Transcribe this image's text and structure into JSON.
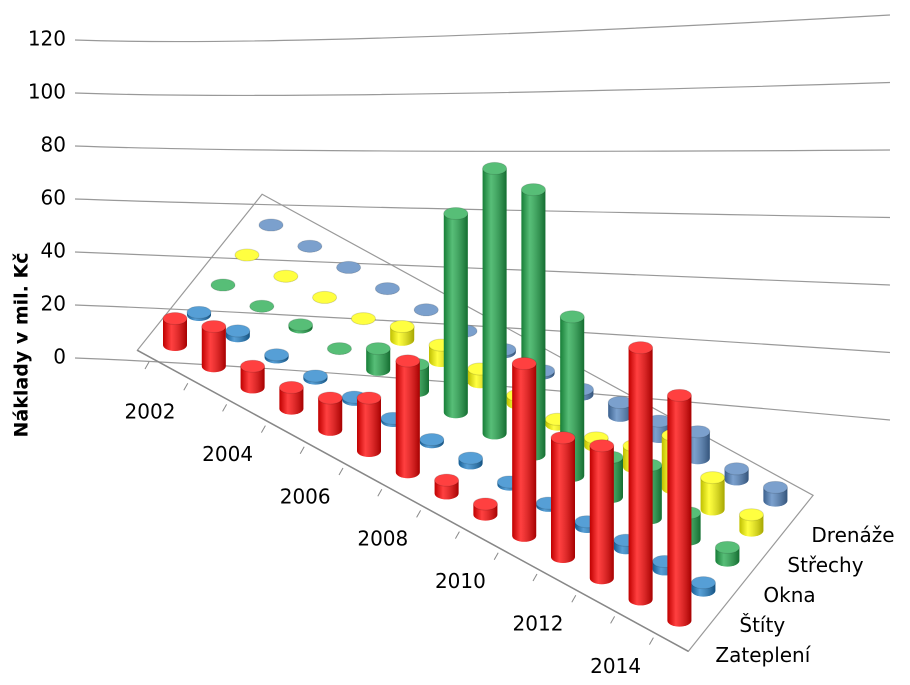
{
  "chart_data": {
    "type": "bar3d",
    "y_label": "Náklady v mil. Kč",
    "categories": [
      "2002",
      null,
      "2004",
      null,
      "2006",
      null,
      "2008",
      null,
      "2010",
      null,
      "2012",
      null,
      "2014",
      null
    ],
    "series": [
      {
        "name": "Zateplení",
        "color": "#ff0000",
        "values": [
          10,
          15,
          8,
          8,
          12,
          20,
          42,
          5,
          4,
          65,
          45,
          50,
          95,
          85
        ]
      },
      {
        "name": "Štíty",
        "color": "#1e7fc8",
        "values": [
          1,
          2,
          1,
          1,
          1,
          1,
          1,
          2,
          1,
          1,
          2,
          3,
          3,
          3
        ]
      },
      {
        "name": "Okna",
        "color": "#1fa84a",
        "values": [
          0,
          0,
          1,
          0,
          8,
          10,
          75,
          100,
          100,
          60,
          15,
          20,
          10,
          5
        ]
      },
      {
        "name": "Střechy",
        "color": "#ffff00",
        "values": [
          0,
          0,
          0,
          0,
          5,
          6,
          5,
          3,
          2,
          3,
          8,
          20,
          12,
          6
        ]
      },
      {
        "name": "Drenáže",
        "color": "#4f81bd",
        "values": [
          0,
          0,
          0,
          0,
          0,
          0,
          1,
          1,
          2,
          5,
          6,
          10,
          4,
          5
        ]
      }
    ],
    "ylim": [
      0,
      120
    ],
    "yticks": [
      0,
      20,
      40,
      60,
      80,
      100,
      120
    ],
    "grid": true
  }
}
